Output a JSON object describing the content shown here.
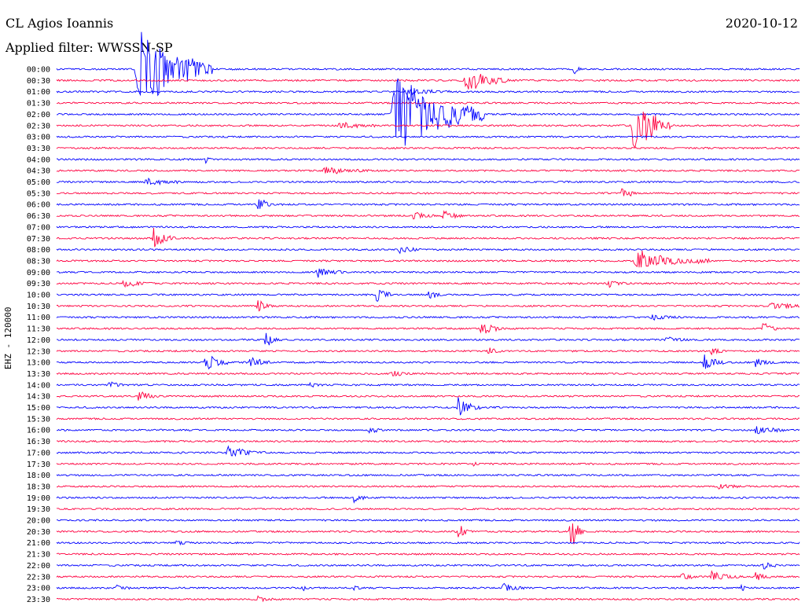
{
  "header": {
    "station": "CL Agios Ioannis",
    "date": "2020-10-12",
    "filter": "Applied filter: WWSSN-SP"
  },
  "colors": {
    "even_row": "#0000ff",
    "odd_row": "#ff0040",
    "background": "#ffffff"
  },
  "chart_data": {
    "type": "line",
    "title": "",
    "ylabel": "EHZ - 120000",
    "xlabel": "",
    "grid": false,
    "legend": "none",
    "row_labels": [
      "00:00",
      "00:30",
      "01:00",
      "01:30",
      "02:00",
      "02:30",
      "03:00",
      "03:30",
      "04:00",
      "04:30",
      "05:00",
      "05:30",
      "06:00",
      "06:30",
      "07:00",
      "07:30",
      "08:00",
      "08:30",
      "09:00",
      "09:30",
      "10:00",
      "10:30",
      "11:00",
      "11:30",
      "12:00",
      "12:30",
      "13:00",
      "13:30",
      "14:00",
      "14:30",
      "15:00",
      "15:30",
      "16:00",
      "16:30",
      "17:00",
      "17:30",
      "18:00",
      "18:30",
      "19:00",
      "19:30",
      "20:00",
      "20:30",
      "21:00",
      "21:30",
      "22:00",
      "22:30",
      "23:00",
      "23:30"
    ],
    "events": [
      {
        "row": 0,
        "x": 0.11,
        "amp": 5.0,
        "dur": 0.1
      },
      {
        "row": 0,
        "x": 0.695,
        "amp": 0.8,
        "dur": 0.01
      },
      {
        "row": 1,
        "x": 0.55,
        "amp": 1.2,
        "dur": 0.06
      },
      {
        "row": 2,
        "x": 0.47,
        "amp": 0.4,
        "dur": 0.06
      },
      {
        "row": 4,
        "x": 0.455,
        "amp": 5.0,
        "dur": 0.12
      },
      {
        "row": 5,
        "x": 0.38,
        "amp": 0.4,
        "dur": 0.05
      },
      {
        "row": 5,
        "x": 0.775,
        "amp": 3.5,
        "dur": 0.05
      },
      {
        "row": 8,
        "x": 0.2,
        "amp": 0.4,
        "dur": 0.01
      },
      {
        "row": 9,
        "x": 0.36,
        "amp": 0.4,
        "dur": 0.06
      },
      {
        "row": 10,
        "x": 0.12,
        "amp": 0.4,
        "dur": 0.05
      },
      {
        "row": 11,
        "x": 0.76,
        "amp": 0.8,
        "dur": 0.02
      },
      {
        "row": 12,
        "x": 0.27,
        "amp": 0.9,
        "dur": 0.02
      },
      {
        "row": 13,
        "x": 0.48,
        "amp": 0.5,
        "dur": 0.03
      },
      {
        "row": 13,
        "x": 0.52,
        "amp": 0.5,
        "dur": 0.03
      },
      {
        "row": 15,
        "x": 0.13,
        "amp": 1.1,
        "dur": 0.03
      },
      {
        "row": 16,
        "x": 0.46,
        "amp": 0.4,
        "dur": 0.03
      },
      {
        "row": 17,
        "x": 0.78,
        "amp": 1.1,
        "dur": 0.1
      },
      {
        "row": 18,
        "x": 0.35,
        "amp": 0.5,
        "dur": 0.04
      },
      {
        "row": 19,
        "x": 0.09,
        "amp": 0.4,
        "dur": 0.04
      },
      {
        "row": 19,
        "x": 0.74,
        "amp": 0.4,
        "dur": 0.03
      },
      {
        "row": 20,
        "x": 0.43,
        "amp": 0.9,
        "dur": 0.02
      },
      {
        "row": 20,
        "x": 0.5,
        "amp": 0.7,
        "dur": 0.02
      },
      {
        "row": 21,
        "x": 0.27,
        "amp": 0.9,
        "dur": 0.02
      },
      {
        "row": 21,
        "x": 0.96,
        "amp": 0.5,
        "dur": 0.04
      },
      {
        "row": 22,
        "x": 0.8,
        "amp": 0.3,
        "dur": 0.04
      },
      {
        "row": 23,
        "x": 0.57,
        "amp": 0.8,
        "dur": 0.03
      },
      {
        "row": 23,
        "x": 0.95,
        "amp": 0.8,
        "dur": 0.02
      },
      {
        "row": 24,
        "x": 0.28,
        "amp": 1.0,
        "dur": 0.02
      },
      {
        "row": 24,
        "x": 0.82,
        "amp": 0.4,
        "dur": 0.03
      },
      {
        "row": 25,
        "x": 0.58,
        "amp": 0.4,
        "dur": 0.02
      },
      {
        "row": 25,
        "x": 0.88,
        "amp": 0.4,
        "dur": 0.02
      },
      {
        "row": 26,
        "x": 0.2,
        "amp": 1.2,
        "dur": 0.03
      },
      {
        "row": 26,
        "x": 0.26,
        "amp": 0.7,
        "dur": 0.03
      },
      {
        "row": 26,
        "x": 0.87,
        "amp": 1.0,
        "dur": 0.03
      },
      {
        "row": 26,
        "x": 0.94,
        "amp": 0.5,
        "dur": 0.03
      },
      {
        "row": 27,
        "x": 0.45,
        "amp": 0.4,
        "dur": 0.03
      },
      {
        "row": 28,
        "x": 0.07,
        "amp": 0.5,
        "dur": 0.02
      },
      {
        "row": 28,
        "x": 0.34,
        "amp": 0.3,
        "dur": 0.02
      },
      {
        "row": 29,
        "x": 0.11,
        "amp": 0.5,
        "dur": 0.03
      },
      {
        "row": 30,
        "x": 0.54,
        "amp": 1.1,
        "dur": 0.03
      },
      {
        "row": 32,
        "x": 0.42,
        "amp": 0.4,
        "dur": 0.02
      },
      {
        "row": 32,
        "x": 0.94,
        "amp": 0.5,
        "dur": 0.04
      },
      {
        "row": 34,
        "x": 0.23,
        "amp": 0.6,
        "dur": 0.05
      },
      {
        "row": 35,
        "x": 0.56,
        "amp": 0.4,
        "dur": 0.01
      },
      {
        "row": 37,
        "x": 0.89,
        "amp": 0.3,
        "dur": 0.03
      },
      {
        "row": 38,
        "x": 0.4,
        "amp": 0.5,
        "dur": 0.02
      },
      {
        "row": 41,
        "x": 0.54,
        "amp": 0.7,
        "dur": 0.02
      },
      {
        "row": 41,
        "x": 0.69,
        "amp": 2.0,
        "dur": 0.02
      },
      {
        "row": 42,
        "x": 0.16,
        "amp": 0.3,
        "dur": 0.02
      },
      {
        "row": 44,
        "x": 0.95,
        "amp": 0.6,
        "dur": 0.02
      },
      {
        "row": 45,
        "x": 0.84,
        "amp": 0.5,
        "dur": 0.02
      },
      {
        "row": 45,
        "x": 0.88,
        "amp": 0.6,
        "dur": 0.04
      },
      {
        "row": 45,
        "x": 0.94,
        "amp": 0.6,
        "dur": 0.02
      },
      {
        "row": 46,
        "x": 0.08,
        "amp": 0.4,
        "dur": 0.02
      },
      {
        "row": 46,
        "x": 0.33,
        "amp": 0.5,
        "dur": 0.01
      },
      {
        "row": 46,
        "x": 0.4,
        "amp": 0.4,
        "dur": 0.01
      },
      {
        "row": 46,
        "x": 0.6,
        "amp": 0.6,
        "dur": 0.03
      },
      {
        "row": 46,
        "x": 0.92,
        "amp": 0.5,
        "dur": 0.01
      },
      {
        "row": 47,
        "x": 0.27,
        "amp": 0.3,
        "dur": 0.02
      }
    ]
  }
}
